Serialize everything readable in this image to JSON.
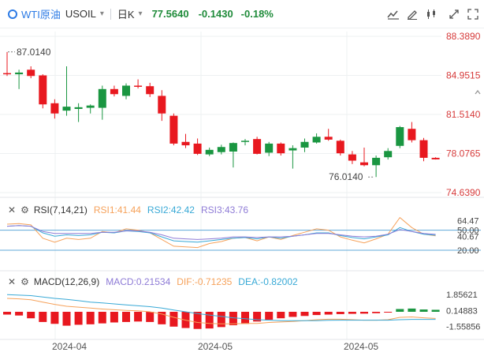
{
  "header": {
    "symbol_name": "WTI原油",
    "symbol_code": "USOIL",
    "caret": "▾",
    "timeframe": "日K",
    "timeframe_caret": "▾",
    "last_price": "77.5640",
    "change": "-0.1430",
    "change_pct": "-0.18%"
  },
  "toolbar": {
    "icons": [
      "chart-type-icon",
      "drawing-pen-icon",
      "indicator-icon",
      "compare-icon",
      "fullscreen-icon"
    ]
  },
  "colors": {
    "up": "#1a9641",
    "down": "#e8181f",
    "grid": "#eef0f2",
    "rsi1": "#f6a25b",
    "rsi2": "#38a9d6",
    "rsi3": "#8e7bd6",
    "dif": "#f6a25b",
    "dea": "#38a9d6",
    "macd": "#8e7bd6",
    "axis_red": "#d63a3a"
  },
  "chart_data": [
    {
      "type": "candlestick",
      "title": "WTI原油 USOIL 日K",
      "price_axis_labels": [
        "88.3890",
        "84.9515",
        "81.5140",
        "78.0765",
        "74.6390"
      ],
      "ylim": [
        74.639,
        88.389
      ],
      "x_labels": [
        "2024-04",
        "2024-05",
        "2024-05"
      ],
      "annotations": {
        "high": "87.0140",
        "low": "76.0140"
      },
      "candles": [
        {
          "o": 85.15,
          "h": 87.01,
          "l": 84.9,
          "c": 85.05
        },
        {
          "o": 85.05,
          "h": 85.45,
          "l": 83.75,
          "c": 85.2
        },
        {
          "o": 85.45,
          "h": 85.75,
          "l": 84.7,
          "c": 84.9
        },
        {
          "o": 84.95,
          "h": 85.05,
          "l": 82.05,
          "c": 82.4
        },
        {
          "o": 82.5,
          "h": 82.85,
          "l": 81.15,
          "c": 81.6
        },
        {
          "o": 81.85,
          "h": 85.75,
          "l": 81.4,
          "c": 82.2
        },
        {
          "o": 82.0,
          "h": 82.5,
          "l": 80.85,
          "c": 82.15
        },
        {
          "o": 82.1,
          "h": 82.4,
          "l": 81.6,
          "c": 82.3
        },
        {
          "o": 82.1,
          "h": 84.05,
          "l": 81.05,
          "c": 83.75
        },
        {
          "o": 83.75,
          "h": 84.05,
          "l": 83.1,
          "c": 83.3
        },
        {
          "o": 83.15,
          "h": 84.25,
          "l": 82.85,
          "c": 84.05
        },
        {
          "o": 84.05,
          "h": 84.6,
          "l": 83.8,
          "c": 84.0
        },
        {
          "o": 84.0,
          "h": 84.3,
          "l": 83.05,
          "c": 83.3
        },
        {
          "o": 83.15,
          "h": 83.65,
          "l": 80.95,
          "c": 81.6
        },
        {
          "o": 81.4,
          "h": 81.6,
          "l": 78.8,
          "c": 78.95
        },
        {
          "o": 79.1,
          "h": 79.8,
          "l": 78.55,
          "c": 78.8
        },
        {
          "o": 78.95,
          "h": 79.4,
          "l": 77.95,
          "c": 78.05
        },
        {
          "o": 78.0,
          "h": 78.6,
          "l": 77.85,
          "c": 78.4
        },
        {
          "o": 78.2,
          "h": 78.85,
          "l": 78.0,
          "c": 78.65
        },
        {
          "o": 78.25,
          "h": 79.05,
          "l": 76.85,
          "c": 79.0
        },
        {
          "o": 79.1,
          "h": 79.35,
          "l": 78.8,
          "c": 79.2
        },
        {
          "o": 79.35,
          "h": 79.55,
          "l": 78.0,
          "c": 78.05
        },
        {
          "o": 78.15,
          "h": 79.1,
          "l": 77.85,
          "c": 78.95
        },
        {
          "o": 78.95,
          "h": 79.05,
          "l": 77.9,
          "c": 78.1
        },
        {
          "o": 78.35,
          "h": 78.8,
          "l": 76.75,
          "c": 78.55
        },
        {
          "o": 78.6,
          "h": 79.4,
          "l": 78.2,
          "c": 79.1
        },
        {
          "o": 79.05,
          "h": 79.85,
          "l": 78.95,
          "c": 79.55
        },
        {
          "o": 79.55,
          "h": 80.25,
          "l": 79.2,
          "c": 79.3
        },
        {
          "o": 79.2,
          "h": 79.3,
          "l": 77.9,
          "c": 78.1
        },
        {
          "o": 78.0,
          "h": 78.3,
          "l": 77.15,
          "c": 77.45
        },
        {
          "o": 77.3,
          "h": 78.6,
          "l": 76.95,
          "c": 77.05
        },
        {
          "o": 77.05,
          "h": 77.9,
          "l": 76.01,
          "c": 77.7
        },
        {
          "o": 77.75,
          "h": 78.55,
          "l": 77.55,
          "c": 78.3
        },
        {
          "o": 78.75,
          "h": 80.5,
          "l": 78.55,
          "c": 80.4
        },
        {
          "o": 80.25,
          "h": 80.85,
          "l": 79.05,
          "c": 79.25
        },
        {
          "o": 79.25,
          "h": 79.45,
          "l": 77.4,
          "c": 77.7
        },
        {
          "o": 77.7,
          "h": 77.75,
          "l": 77.55,
          "c": 77.564
        }
      ]
    },
    {
      "type": "line",
      "title": "RSI(7,14,21)",
      "series_labels": [
        "RSI1:41.44",
        "RSI2:42.42",
        "RSI3:43.76"
      ],
      "axis_labels": [
        "64.47",
        "50.00",
        "40.67",
        "20.00"
      ],
      "ylim": [
        14,
        78
      ],
      "reference_lines": [
        50,
        20
      ],
      "series": [
        {
          "name": "RSI1",
          "values": [
            59,
            60,
            58,
            38,
            32,
            38,
            36,
            38,
            48,
            46,
            52,
            50,
            46,
            36,
            26,
            25,
            24,
            30,
            33,
            38,
            39,
            34,
            40,
            36,
            42,
            47,
            52,
            50,
            40,
            35,
            31,
            37,
            44,
            69,
            54,
            44,
            41.44
          ]
        },
        {
          "name": "RSI2",
          "values": [
            56,
            57,
            56,
            46,
            41,
            43,
            42,
            43,
            47,
            46,
            49,
            48,
            46,
            40,
            34,
            33,
            32,
            34,
            36,
            38,
            39,
            37,
            40,
            38,
            41,
            43,
            46,
            46,
            42,
            39,
            37,
            40,
            43,
            54,
            48,
            44,
            42.42
          ]
        },
        {
          "name": "RSI3",
          "values": [
            56,
            57,
            56,
            48,
            45,
            45,
            45,
            45,
            47,
            47,
            49,
            49,
            47,
            43,
            38,
            37,
            36,
            37,
            38,
            40,
            40,
            39,
            40,
            40,
            41,
            43,
            45,
            45,
            43,
            41,
            40,
            41,
            44,
            51,
            48,
            45,
            43.76
          ]
        }
      ]
    },
    {
      "type": "bar",
      "title": "MACD(12,26,9)",
      "series_labels": [
        "MACD:0.21534",
        "DIF:-0.71235",
        "DEA:-0.82002"
      ],
      "axis_labels": [
        "1.85621",
        "0.14883",
        "-1.55856"
      ],
      "ylim": [
        -2.3,
        2.3
      ],
      "series": [
        {
          "name": "DIF",
          "values": [
            1.45,
            1.4,
            1.3,
            1.05,
            0.8,
            0.6,
            0.5,
            0.4,
            0.3,
            0.22,
            0.15,
            0.1,
            0.0,
            -0.25,
            -0.6,
            -0.9,
            -1.15,
            -1.25,
            -1.3,
            -1.3,
            -1.25,
            -1.25,
            -1.15,
            -1.1,
            -1.05,
            -0.95,
            -0.85,
            -0.8,
            -0.8,
            -0.85,
            -0.9,
            -0.9,
            -0.85,
            -0.6,
            -0.55,
            -0.65,
            -0.71235
          ]
        },
        {
          "name": "DEA",
          "values": [
            1.85,
            1.8,
            1.75,
            1.6,
            1.45,
            1.35,
            1.2,
            1.05,
            0.95,
            0.85,
            0.75,
            0.65,
            0.55,
            0.4,
            0.2,
            0.0,
            -0.2,
            -0.35,
            -0.5,
            -0.65,
            -0.75,
            -0.85,
            -0.9,
            -0.95,
            -0.95,
            -0.95,
            -0.95,
            -0.92,
            -0.9,
            -0.9,
            -0.9,
            -0.9,
            -0.9,
            -0.85,
            -0.82,
            -0.82,
            -0.82002
          ]
        },
        {
          "name": "MACD",
          "values": [
            -0.3,
            -0.4,
            -0.7,
            -1.1,
            -1.3,
            -1.5,
            -1.4,
            -1.35,
            -1.25,
            -1.15,
            -1.1,
            -1.05,
            -1.1,
            -1.35,
            -1.6,
            -1.75,
            -1.85,
            -1.8,
            -1.65,
            -1.45,
            -1.3,
            -1.05,
            -0.85,
            -0.7,
            -0.55,
            -0.45,
            -0.35,
            -0.3,
            -0.25,
            -0.22,
            -0.2,
            -0.15,
            -0.05,
            0.3,
            0.35,
            0.25,
            0.21534
          ]
        }
      ]
    }
  ]
}
